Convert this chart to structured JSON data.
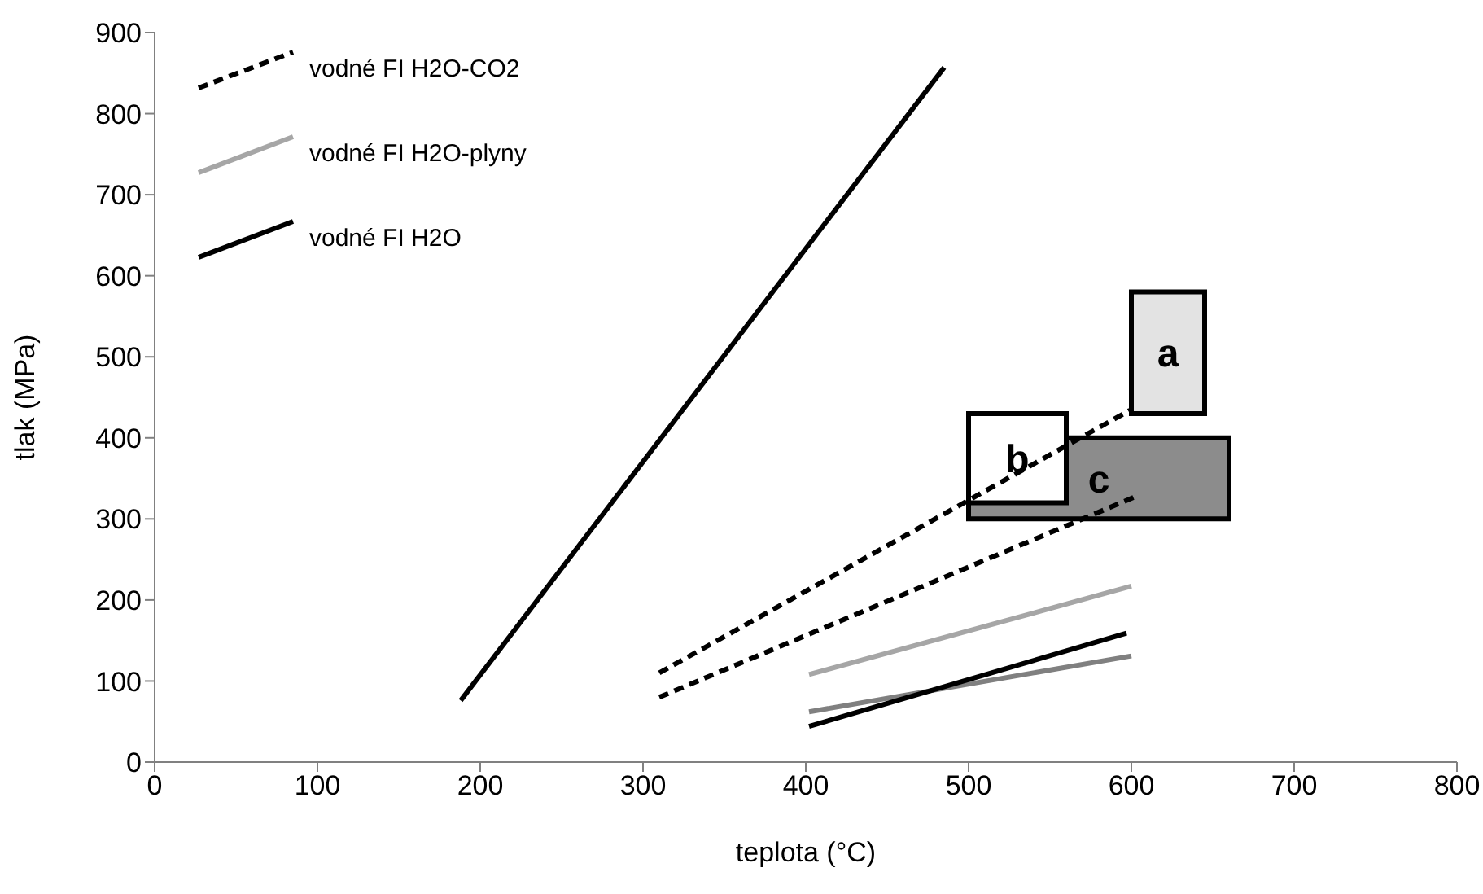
{
  "chart_data": {
    "type": "line",
    "xlabel": "teplota (°C)",
    "ylabel": "tlak (MPa)",
    "xlim": [
      0,
      800
    ],
    "xticks": [
      0,
      100,
      200,
      300,
      400,
      500,
      600,
      700,
      800
    ],
    "ylim": [
      0,
      900
    ],
    "yticks": [
      0,
      100,
      200,
      300,
      400,
      500,
      600,
      700,
      800,
      900
    ],
    "grid": false,
    "legend": "top left",
    "marker": "none",
    "series": [
      {
        "type": "area",
        "color": "#e3e3e3",
        "x": [
          600,
          645
        ],
        "values": [
          null,
          null
        ],
        "lower": [
          430,
          430
        ],
        "upper": [
          580,
          580
        ]
      },
      {
        "type": "area",
        "color": "#8c8c8c",
        "x": [
          500,
          660
        ],
        "values": [
          null,
          null
        ],
        "lower": [
          300,
          300
        ],
        "upper": [
          400,
          400
        ]
      },
      {
        "type": "area",
        "color": "#ffffff",
        "x": [
          500,
          560
        ],
        "values": [
          null,
          null
        ],
        "lower": [
          320,
          320
        ],
        "upper": [
          430,
          430
        ]
      },
      {
        "name": "vodné FI H2O-CO2",
        "color": "#000000",
        "line_style": "dashed",
        "x": [
          310,
          599
        ],
        "values": [
          110,
          434
        ]
      },
      {
        "color": "#000000",
        "line_style": "dashed",
        "x": [
          310,
          602
        ],
        "values": [
          80,
          327
        ]
      },
      {
        "name": "vodné FI H2O-plyny",
        "color": "#a6a6a6",
        "line_style": "solid",
        "x": [
          402,
          600
        ],
        "values": [
          108,
          217
        ]
      },
      {
        "color": "#808080",
        "line_style": "solid",
        "x": [
          402,
          600
        ],
        "values": [
          62,
          131
        ]
      },
      {
        "name": "vodné FI H2O",
        "color": "#000000",
        "line_style": "solid",
        "x": [
          188,
          485
        ],
        "values": [
          76,
          857
        ]
      },
      {
        "color": "#000000",
        "line_style": "solid",
        "x": [
          402,
          597
        ],
        "values": [
          44,
          159
        ]
      }
    ],
    "annotations": [
      "a",
      "c",
      "b"
    ]
  }
}
